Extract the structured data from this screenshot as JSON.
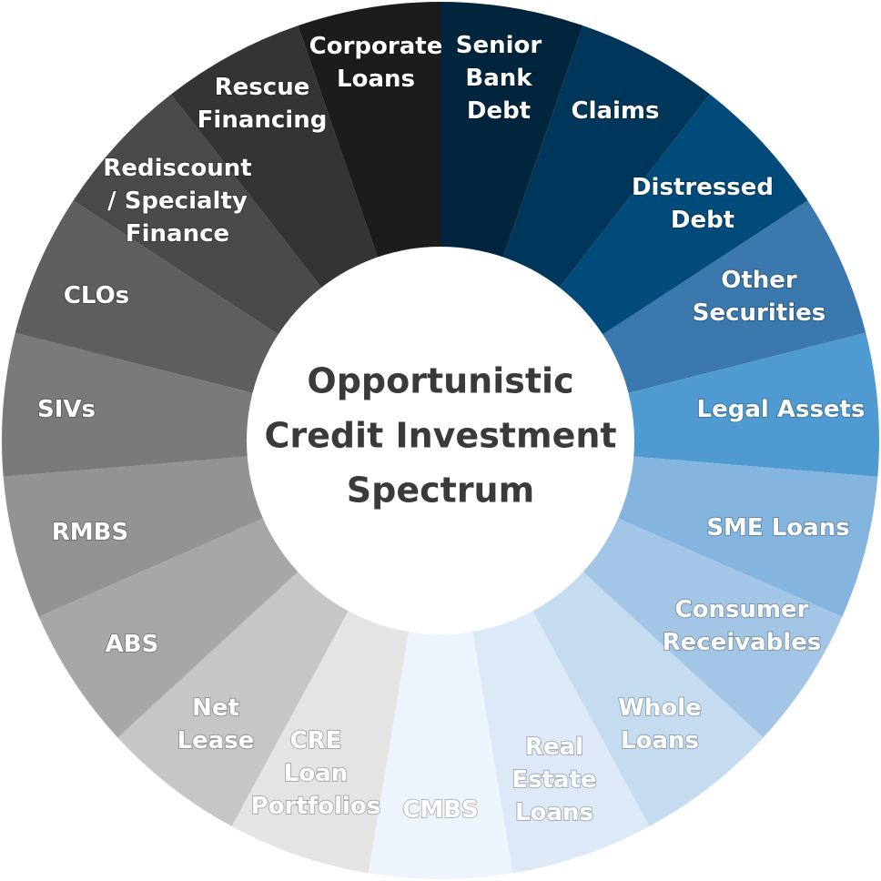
{
  "center": {
    "title_lines": [
      "Opportunistic",
      "Credit Investment",
      "Spectrum"
    ]
  },
  "segments": [
    {
      "lines": [
        "Senior",
        "Bank",
        "Debt"
      ],
      "color": "#00253d"
    },
    {
      "lines": [
        "Claims"
      ],
      "color": "#003659"
    },
    {
      "lines": [
        "Distressed",
        "Debt"
      ],
      "color": "#004b7a"
    },
    {
      "lines": [
        "Other",
        "Securities"
      ],
      "color": "#3b78ae"
    },
    {
      "lines": [
        "Legal Assets"
      ],
      "color": "#4f9bd1"
    },
    {
      "lines": [
        "SME Loans"
      ],
      "color": "#83b5df"
    },
    {
      "lines": [
        "Consumer",
        "Receivables"
      ],
      "color": "#a3c6e6"
    },
    {
      "lines": [
        "Whole",
        "Loans"
      ],
      "color": "#c4dbf0"
    },
    {
      "lines": [
        "Real",
        "Estate",
        "Loans"
      ],
      "color": "#dde9f6"
    },
    {
      "lines": [
        "CMBS"
      ],
      "color": "#eef4fb"
    },
    {
      "lines": [
        "CRE",
        "Loan",
        "Portfolios"
      ],
      "color": "#e4e4e4"
    },
    {
      "lines": [
        "Net",
        "Lease"
      ],
      "color": "#c6c6c6"
    },
    {
      "lines": [
        "ABS"
      ],
      "color": "#a7a7a7"
    },
    {
      "lines": [
        "RMBS"
      ],
      "color": "#939393"
    },
    {
      "lines": [
        "SIVs"
      ],
      "color": "#7a7a7a"
    },
    {
      "lines": [
        "CLOs"
      ],
      "color": "#5f5f5f"
    },
    {
      "lines": [
        "Rediscount",
        "/ Specialty",
        "Finance"
      ],
      "color": "#4a4a4a"
    },
    {
      "lines": [
        "Rescue",
        "Financing"
      ],
      "color": "#343434"
    },
    {
      "lines": [
        "Corporate",
        "Loans"
      ],
      "color": "#1c1c1c"
    }
  ]
}
